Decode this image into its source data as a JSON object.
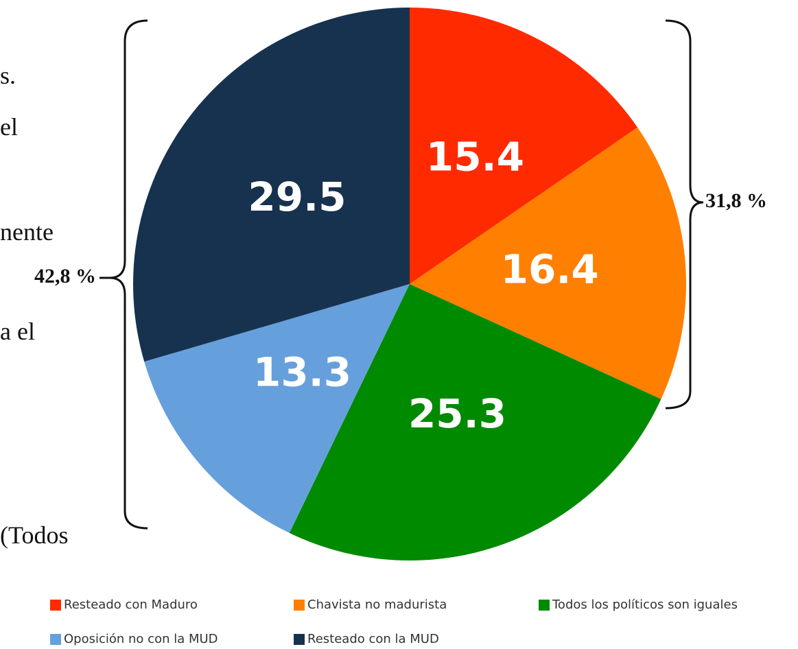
{
  "chart_data": {
    "type": "pie",
    "categories": [
      "Resteado con  Maduro",
      "Chavista no madurista",
      "Todos los políticos son iguales",
      "Oposición no con la MUD",
      "Resteado con la MUD"
    ],
    "values": [
      15.4,
      16.4,
      25.3,
      13.3,
      29.5
    ],
    "colors": [
      "#ff2a00",
      "#ff7f00",
      "#008a00",
      "#66a0dc",
      "#17324f"
    ],
    "annotations": [
      "42,8 %",
      "31,8 %"
    ]
  },
  "side_text": [
    "s.",
    "el",
    "nente",
    "a el",
    "(Todos"
  ]
}
